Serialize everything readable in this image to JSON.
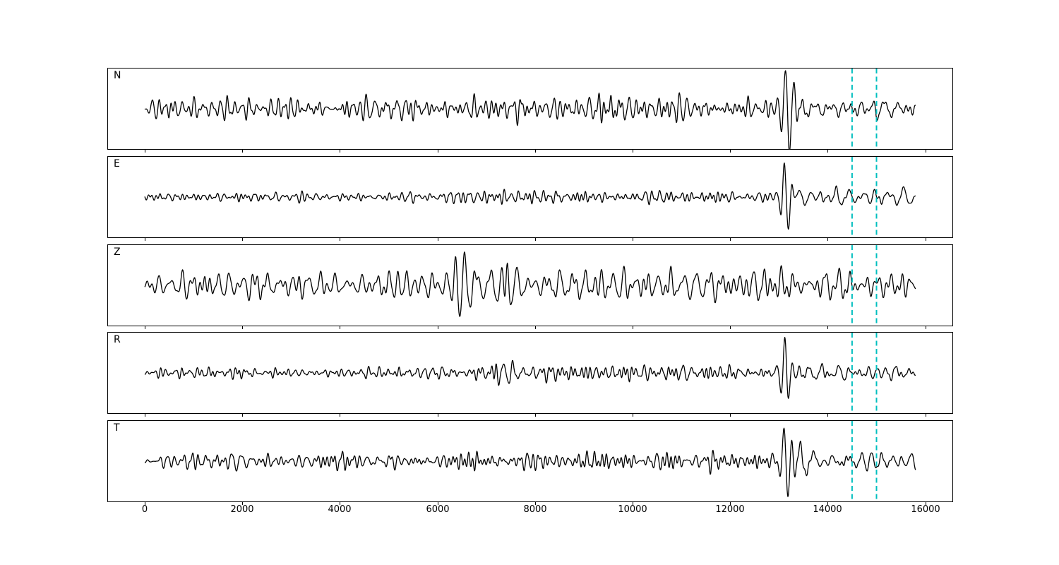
{
  "figure": {
    "background_color": "#ffffff",
    "trace_color": "#000000",
    "marker_color": "#00bfbf"
  },
  "chart_data": {
    "type": "line",
    "subtype": "seismogram-multipanel",
    "title": "",
    "xlabel": "",
    "ylabel": "",
    "grid": false,
    "legend": null,
    "xlim": [
      -770,
      16570
    ],
    "x_data_range": [
      0,
      15800
    ],
    "xticks": [
      0,
      2000,
      4000,
      6000,
      8000,
      10000,
      12000,
      14000,
      16000
    ],
    "xtick_labels": [
      "0",
      "2000",
      "4000",
      "6000",
      "8000",
      "10000",
      "12000",
      "14000",
      "16000"
    ],
    "marker_lines": {
      "x": [
        14500,
        15000
      ],
      "style": "dashed",
      "color": "#00bfbf",
      "width": 2
    },
    "trace_color": "#000000",
    "panels": [
      {
        "label": "N",
        "seed": 11,
        "noise": [
          {
            "periods": [
              70,
              240
            ],
            "envelope": [
              [
                0,
                4
              ],
              [
                150,
                13
              ],
              [
                800,
                16
              ],
              [
                2000,
                16
              ],
              [
                3200,
                13
              ],
              [
                4200,
                15
              ],
              [
                5200,
                15
              ],
              [
                6200,
                15
              ],
              [
                6900,
                20
              ],
              [
                7500,
                21
              ],
              [
                8200,
                16
              ],
              [
                9500,
                16
              ],
              [
                10500,
                20
              ],
              [
                11500,
                16
              ],
              [
                12800,
                14
              ],
              [
                13100,
                11
              ],
              [
                13600,
                9
              ],
              [
                15800,
                7
              ]
            ]
          },
          {
            "periods": [
              150,
              380
            ],
            "envelope": [
              [
                13050,
                0
              ],
              [
                13250,
                18
              ],
              [
                13600,
                20
              ],
              [
                14000,
                15
              ],
              [
                14400,
                16
              ],
              [
                14750,
                22
              ],
              [
                15050,
                18
              ],
              [
                15400,
                12
              ],
              [
                15800,
                11
              ]
            ]
          }
        ],
        "events": [
          {
            "x": 13170,
            "amp": -52,
            "period": 170,
            "sigma": 120,
            "shape": "sin"
          }
        ]
      },
      {
        "label": "E",
        "seed": 22,
        "noise": [
          {
            "periods": [
              75,
              260
            ],
            "envelope": [
              [
                0,
                3
              ],
              [
                300,
                7
              ],
              [
                1500,
                7
              ],
              [
                3000,
                6
              ],
              [
                4500,
                7
              ],
              [
                6000,
                8
              ],
              [
                6600,
                10
              ],
              [
                7300,
                9
              ],
              [
                8500,
                8
              ],
              [
                10000,
                8
              ],
              [
                11500,
                9
              ],
              [
                12800,
                8
              ],
              [
                13100,
                6
              ],
              [
                14000,
                5
              ],
              [
                15800,
                4
              ]
            ]
          },
          {
            "periods": [
              150,
              380
            ],
            "envelope": [
              [
                13050,
                0
              ],
              [
                13300,
                14
              ],
              [
                13700,
                18
              ],
              [
                14100,
                14
              ],
              [
                14500,
                15
              ],
              [
                14850,
                17
              ],
              [
                15200,
                14
              ],
              [
                15600,
                13
              ],
              [
                15800,
                12
              ]
            ]
          }
        ],
        "events": [
          {
            "x": 13150,
            "amp": -46,
            "period": 165,
            "sigma": 110,
            "shape": "sin"
          }
        ]
      },
      {
        "label": "Z",
        "seed": 33,
        "noise": [
          {
            "periods": [
              90,
              300
            ],
            "envelope": [
              [
                0,
                6
              ],
              [
                200,
                16
              ],
              [
                1000,
                19
              ],
              [
                2000,
                18
              ],
              [
                3000,
                18
              ],
              [
                4000,
                18
              ],
              [
                5000,
                20
              ],
              [
                5800,
                19
              ],
              [
                6300,
                22
              ],
              [
                7000,
                25
              ],
              [
                7700,
                24
              ],
              [
                8300,
                21
              ],
              [
                9200,
                21
              ],
              [
                10200,
                23
              ],
              [
                11200,
                20
              ],
              [
                12200,
                20
              ],
              [
                13200,
                21
              ],
              [
                14200,
                21
              ],
              [
                15200,
                20
              ],
              [
                15800,
                18
              ]
            ]
          },
          {
            "periods": [
              150,
              380
            ],
            "envelope": [
              [
                13050,
                0
              ],
              [
                13300,
                8
              ],
              [
                14000,
                8
              ],
              [
                15000,
                8
              ],
              [
                15800,
                7
              ]
            ]
          }
        ],
        "events": [
          {
            "x": 6470,
            "amp": -42,
            "period": 190,
            "sigma": 130,
            "shape": "cos"
          },
          {
            "x": 7430,
            "amp": 30,
            "period": 120,
            "sigma": 60,
            "shape": "cos"
          },
          {
            "x": 13180,
            "amp": -18,
            "period": 160,
            "sigma": 80,
            "shape": "sin"
          }
        ]
      },
      {
        "label": "R",
        "seed": 44,
        "noise": [
          {
            "periods": [
              70,
              250
            ],
            "envelope": [
              [
                0,
                3
              ],
              [
                300,
                8
              ],
              [
                1500,
                8
              ],
              [
                3000,
                7
              ],
              [
                4500,
                8
              ],
              [
                5800,
                8
              ],
              [
                6400,
                12
              ],
              [
                7200,
                12
              ],
              [
                8000,
                10
              ],
              [
                9200,
                10
              ],
              [
                10400,
                12
              ],
              [
                11400,
                10
              ],
              [
                12600,
                10
              ],
              [
                13100,
                8
              ],
              [
                14000,
                6
              ],
              [
                15800,
                5
              ]
            ]
          },
          {
            "periods": [
              150,
              380
            ],
            "envelope": [
              [
                13050,
                0
              ],
              [
                13300,
                15
              ],
              [
                13700,
                17
              ],
              [
                14100,
                14
              ],
              [
                14500,
                16
              ],
              [
                14800,
                18
              ],
              [
                15100,
                15
              ],
              [
                15500,
                13
              ],
              [
                15800,
                12
              ]
            ]
          }
        ],
        "events": [
          {
            "x": 13160,
            "amp": -46,
            "period": 165,
            "sigma": 110,
            "shape": "sin"
          }
        ]
      },
      {
        "label": "T",
        "seed": 55,
        "noise": [
          {
            "periods": [
              75,
              260
            ],
            "envelope": [
              [
                0,
                4
              ],
              [
                300,
                11
              ],
              [
                1500,
                12
              ],
              [
                3000,
                11
              ],
              [
                4500,
                12
              ],
              [
                6000,
                12
              ],
              [
                6800,
                14
              ],
              [
                7500,
                15
              ],
              [
                8500,
                12
              ],
              [
                10000,
                12
              ],
              [
                11500,
                12
              ],
              [
                12800,
                11
              ],
              [
                13100,
                9
              ],
              [
                14000,
                7
              ],
              [
                15800,
                6
              ]
            ]
          },
          {
            "periods": [
              150,
              380
            ],
            "envelope": [
              [
                13050,
                0
              ],
              [
                13300,
                16
              ],
              [
                13700,
                19
              ],
              [
                14100,
                16
              ],
              [
                14500,
                17
              ],
              [
                14800,
                21
              ],
              [
                15100,
                17
              ],
              [
                15500,
                14
              ],
              [
                15800,
                12
              ]
            ]
          }
        ],
        "events": [
          {
            "x": 13140,
            "amp": -48,
            "period": 170,
            "sigma": 115,
            "shape": "sin"
          }
        ]
      }
    ]
  }
}
